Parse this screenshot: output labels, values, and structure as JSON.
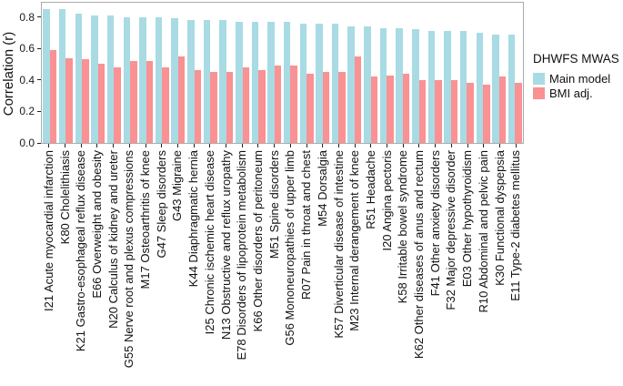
{
  "figure": {
    "background": "#ffffff",
    "panel_border_color": "#ababab"
  },
  "chart_data": {
    "type": "bar",
    "title": "",
    "xlabel": "",
    "ylabel": "Correlation (r)",
    "ylim": [
      0,
      0.89
    ],
    "yticks": [
      0.0,
      0.2,
      0.4,
      0.6,
      0.8
    ],
    "grid": false,
    "legend_position": "right",
    "legend_title": "DHWFS MWAS",
    "categories": [
      "I21 Acute myocardial infarction",
      "K80 Cholelithiasis",
      "K21 Gastro-esophageal reflux disease",
      "E66 Overweight and obesity",
      "N20 Calculus of kidney and ureter",
      "G55 Nerve root and plexus compressions",
      "M17 Osteoarthritis of knee",
      "G47 Sleep disorders",
      "G43 Migraine",
      "K44 Diaphragmatic hernia",
      "I25 Chronic ischemic heart disease",
      "N13 Obstructive and reflux uropathy",
      "E78 Disorders of lipoprotein metabolism",
      "K66 Other disorders of peritoneum",
      "M51 Spine disorders",
      "G56 Mononeuropathies of upper limb",
      "R07 Pain in throat and chest",
      "M54 Dorsalgia",
      "K57 Diverticular disease of intestine",
      "M23 Internal derangement of knee",
      "R51 Headache",
      "I20 Angina pectoris",
      "K58 Irritable bowel syndrome",
      "K62 Other diseases of anus and rectum",
      "F41 Other anxiety disorders",
      "F32 Major depressive disorder",
      "E03 Other hypothyroidism",
      "R10 Abdominal and pelvic pain",
      "K30 Functional dyspepsia",
      "E11 Type-2 diabetes mellitus"
    ],
    "series": [
      {
        "name": "Main model",
        "color": "#a8dbe3",
        "values": [
          0.85,
          0.85,
          0.82,
          0.81,
          0.81,
          0.8,
          0.8,
          0.8,
          0.79,
          0.78,
          0.78,
          0.78,
          0.77,
          0.77,
          0.77,
          0.77,
          0.76,
          0.76,
          0.76,
          0.74,
          0.74,
          0.73,
          0.73,
          0.72,
          0.71,
          0.71,
          0.71,
          0.7,
          0.69,
          0.69
        ]
      },
      {
        "name": "BMI adj.",
        "color": "#fa9193",
        "values": [
          0.59,
          0.54,
          0.53,
          0.5,
          0.48,
          0.52,
          0.52,
          0.48,
          0.55,
          0.46,
          0.45,
          0.45,
          0.48,
          0.46,
          0.49,
          0.49,
          0.44,
          0.45,
          0.45,
          0.55,
          0.42,
          0.43,
          0.44,
          0.4,
          0.4,
          0.4,
          0.38,
          0.37,
          0.42,
          0.38
        ]
      }
    ]
  }
}
